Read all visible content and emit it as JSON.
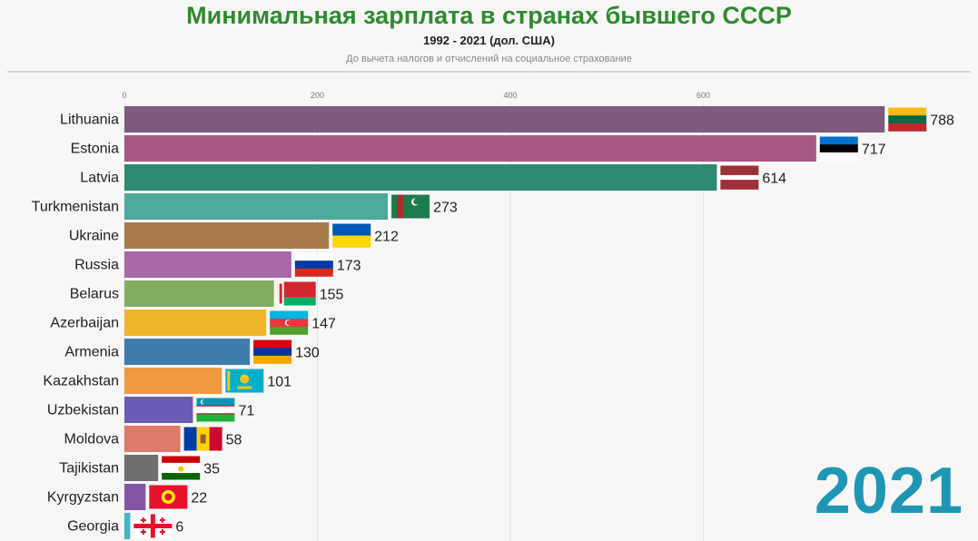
{
  "header": {
    "title": "Минимальная зарплата в странах бывшего СССР",
    "subtitle": "1992 - 2021 (дол. США)",
    "note": "До вычета налогов и отчислений на социальное страхование"
  },
  "year_label": "2021",
  "chart_data": {
    "type": "bar",
    "orientation": "horizontal",
    "xlim": [
      0,
      800
    ],
    "ticks": [
      0,
      200,
      400,
      600
    ],
    "grid": true,
    "categories": [
      "Lithuania",
      "Estonia",
      "Latvia",
      "Turkmenistan",
      "Ukraine",
      "Russia",
      "Belarus",
      "Azerbaijan",
      "Armenia",
      "Kazakhstan",
      "Uzbekistan",
      "Moldova",
      "Tajikistan",
      "Kyrgyzstan",
      "Georgia"
    ],
    "values": [
      788,
      717,
      614,
      273,
      212,
      173,
      155,
      147,
      130,
      101,
      71,
      58,
      35,
      22,
      6
    ],
    "colors": [
      "#7d5b7e",
      "#a85785",
      "#2e8a72",
      "#4eaa9a",
      "#a87a4c",
      "#a968a8",
      "#82ad60",
      "#f0b62b",
      "#3f7bab",
      "#ef9a3e",
      "#6a5db5",
      "#dd7a68",
      "#6f6f6f",
      "#8455a5",
      "#45b4c9"
    ],
    "flags": [
      "lithuania-flag",
      "estonia-flag",
      "latvia-flag",
      "turkmenistan-flag",
      "ukraine-flag",
      "russia-flag",
      "belarus-flag",
      "azerbaijan-flag",
      "armenia-flag",
      "kazakhstan-flag",
      "uzbekistan-flag",
      "moldova-flag",
      "tajikistan-flag",
      "kyrgyzstan-flag",
      "georgia-flag"
    ]
  }
}
